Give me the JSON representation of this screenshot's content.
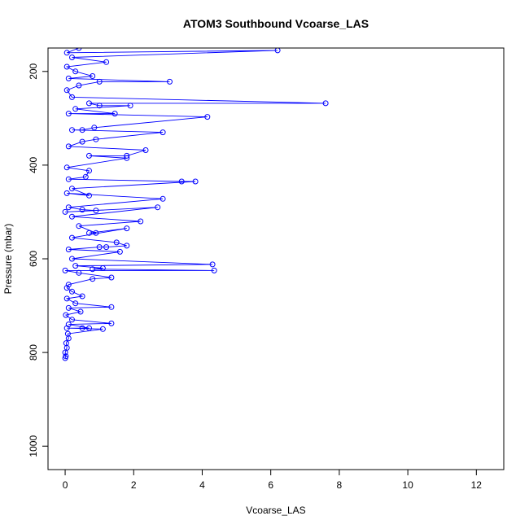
{
  "chart_data": {
    "type": "scatter",
    "title": "ATOM3 Southbound Vcoarse_LAS",
    "xlabel": "Vcoarse_LAS",
    "ylabel": "Pressure (mbar)",
    "xlim": [
      -0.5,
      12.8
    ],
    "ylim": [
      1050,
      150
    ],
    "y_inverted": true,
    "x_ticks": [
      0,
      2,
      4,
      6,
      8,
      10,
      12
    ],
    "y_ticks": [
      200,
      400,
      600,
      800,
      1000
    ],
    "grid": false,
    "legend": "none",
    "series": [
      {
        "color": "#0000ff",
        "marker": "open-circle",
        "connected": true,
        "points": [
          [
            0.0,
            812
          ],
          [
            0.02,
            808
          ],
          [
            0.0,
            800
          ],
          [
            0.05,
            790
          ],
          [
            0.03,
            780
          ],
          [
            0.1,
            770
          ],
          [
            0.08,
            760
          ],
          [
            1.1,
            750
          ],
          [
            0.05,
            748
          ],
          [
            0.5,
            748
          ],
          [
            0.7,
            748
          ],
          [
            0.1,
            740
          ],
          [
            1.35,
            738
          ],
          [
            0.2,
            730
          ],
          [
            0.02,
            720
          ],
          [
            0.45,
            713
          ],
          [
            0.1,
            705
          ],
          [
            1.35,
            703
          ],
          [
            0.3,
            695
          ],
          [
            0.05,
            685
          ],
          [
            0.5,
            680
          ],
          [
            0.2,
            670
          ],
          [
            0.05,
            662
          ],
          [
            0.1,
            655
          ],
          [
            0.8,
            643
          ],
          [
            1.35,
            640
          ],
          [
            0.4,
            630
          ],
          [
            0.0,
            625
          ],
          [
            4.35,
            625
          ],
          [
            0.8,
            622
          ],
          [
            1.1,
            620
          ],
          [
            0.3,
            615
          ],
          [
            4.3,
            612
          ],
          [
            0.2,
            600
          ],
          [
            1.6,
            585
          ],
          [
            0.1,
            580
          ],
          [
            1.0,
            575
          ],
          [
            1.2,
            575
          ],
          [
            1.8,
            572
          ],
          [
            1.5,
            565
          ],
          [
            0.2,
            555
          ],
          [
            1.8,
            535
          ],
          [
            0.7,
            545
          ],
          [
            0.9,
            545
          ],
          [
            0.4,
            530
          ],
          [
            2.2,
            520
          ],
          [
            0.2,
            510
          ],
          [
            2.7,
            490
          ],
          [
            0.0,
            500
          ],
          [
            0.9,
            497
          ],
          [
            0.5,
            495
          ],
          [
            0.1,
            490
          ],
          [
            2.85,
            472
          ],
          [
            0.05,
            460
          ],
          [
            0.7,
            465
          ],
          [
            0.2,
            450
          ],
          [
            3.8,
            435
          ],
          [
            3.4,
            435
          ],
          [
            0.1,
            430
          ],
          [
            0.6,
            425
          ],
          [
            0.7,
            412
          ],
          [
            0.05,
            405
          ],
          [
            1.8,
            385
          ],
          [
            0.7,
            380
          ],
          [
            1.8,
            380
          ],
          [
            2.35,
            368
          ],
          [
            0.1,
            360
          ],
          [
            0.5,
            350
          ],
          [
            0.9,
            345
          ],
          [
            2.85,
            330
          ],
          [
            0.2,
            325
          ],
          [
            0.5,
            325
          ],
          [
            0.85,
            320
          ],
          [
            4.15,
            297
          ],
          [
            0.1,
            290
          ],
          [
            1.45,
            290
          ],
          [
            0.3,
            280
          ],
          [
            1.9,
            273
          ],
          [
            1.0,
            273
          ],
          [
            0.7,
            268
          ],
          [
            7.6,
            268
          ],
          [
            0.2,
            255
          ],
          [
            0.05,
            240
          ],
          [
            0.4,
            230
          ],
          [
            1.0,
            222
          ],
          [
            3.05,
            222
          ],
          [
            0.1,
            215
          ],
          [
            0.8,
            210
          ],
          [
            0.3,
            200
          ],
          [
            0.05,
            190
          ],
          [
            1.2,
            180
          ],
          [
            0.2,
            170
          ],
          [
            6.2,
            155
          ],
          [
            0.05,
            160
          ],
          [
            0.4,
            150
          ]
        ]
      }
    ]
  }
}
